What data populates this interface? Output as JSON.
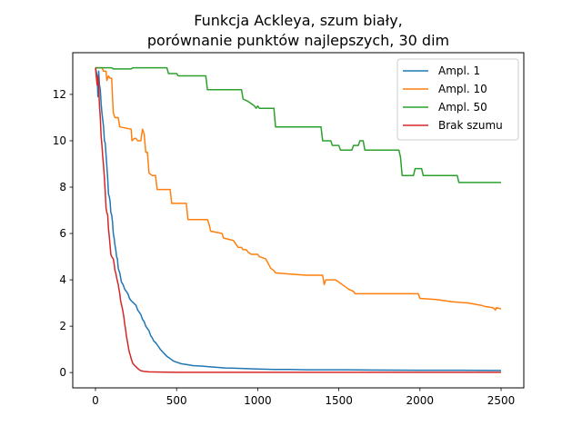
{
  "chart_data": {
    "type": "line",
    "title_line1": "Funkcja Ackleya, szum biały,",
    "title_line2": "porównanie punktów najlepszych, 30 dim",
    "xlabel": "",
    "ylabel": "",
    "xlim": [
      -140,
      2640
    ],
    "ylim": [
      -0.66,
      13.8
    ],
    "xticks": [
      0,
      500,
      1000,
      1500,
      2000,
      2500
    ],
    "yticks": [
      0,
      2,
      4,
      6,
      8,
      10,
      12
    ],
    "grid": false,
    "legend_position": "top-right",
    "series": [
      {
        "name": "Ampl. 1",
        "color": "#1f77b4",
        "points": [
          [
            0,
            13.15
          ],
          [
            10,
            12.8
          ],
          [
            15,
            11.9
          ],
          [
            20,
            13.0
          ],
          [
            25,
            12.4
          ],
          [
            30,
            12.2
          ],
          [
            35,
            11.6
          ],
          [
            40,
            11.2
          ],
          [
            45,
            10.9
          ],
          [
            50,
            10.6
          ],
          [
            55,
            10.0
          ],
          [
            60,
            9.9
          ],
          [
            65,
            9.4
          ],
          [
            70,
            8.9
          ],
          [
            75,
            8.4
          ],
          [
            80,
            7.7
          ],
          [
            85,
            7.6
          ],
          [
            90,
            7.4
          ],
          [
            95,
            6.9
          ],
          [
            100,
            6.8
          ],
          [
            105,
            6.5
          ],
          [
            110,
            6.0
          ],
          [
            115,
            5.8
          ],
          [
            120,
            5.5
          ],
          [
            125,
            5.3
          ],
          [
            130,
            5.0
          ],
          [
            135,
            4.9
          ],
          [
            140,
            4.5
          ],
          [
            145,
            4.4
          ],
          [
            150,
            4.3
          ],
          [
            160,
            3.9
          ],
          [
            170,
            3.8
          ],
          [
            180,
            3.6
          ],
          [
            190,
            3.5
          ],
          [
            200,
            3.4
          ],
          [
            210,
            3.2
          ],
          [
            220,
            3.1
          ],
          [
            235,
            3.0
          ],
          [
            250,
            2.9
          ],
          [
            260,
            2.7
          ],
          [
            270,
            2.6
          ],
          [
            280,
            2.5
          ],
          [
            290,
            2.3
          ],
          [
            300,
            2.2
          ],
          [
            310,
            2.0
          ],
          [
            320,
            1.9
          ],
          [
            330,
            1.8
          ],
          [
            340,
            1.6
          ],
          [
            350,
            1.5
          ],
          [
            360,
            1.35
          ],
          [
            370,
            1.3
          ],
          [
            380,
            1.2
          ],
          [
            400,
            1.0
          ],
          [
            420,
            0.85
          ],
          [
            440,
            0.7
          ],
          [
            460,
            0.6
          ],
          [
            480,
            0.5
          ],
          [
            500,
            0.45
          ],
          [
            530,
            0.38
          ],
          [
            560,
            0.35
          ],
          [
            600,
            0.3
          ],
          [
            650,
            0.28
          ],
          [
            700,
            0.25
          ],
          [
            800,
            0.2
          ],
          [
            900,
            0.18
          ],
          [
            1000,
            0.15
          ],
          [
            1100,
            0.13
          ],
          [
            1200,
            0.13
          ],
          [
            1300,
            0.12
          ],
          [
            1500,
            0.12
          ],
          [
            1700,
            0.11
          ],
          [
            2000,
            0.1
          ],
          [
            2200,
            0.1
          ],
          [
            2500,
            0.09
          ]
        ]
      },
      {
        "name": "Ampl. 10",
        "color": "#ff7f0e",
        "points": [
          [
            0,
            13.15
          ],
          [
            40,
            13.15
          ],
          [
            50,
            13.0
          ],
          [
            65,
            13.0
          ],
          [
            70,
            12.6
          ],
          [
            80,
            12.8
          ],
          [
            90,
            12.7
          ],
          [
            100,
            12.7
          ],
          [
            105,
            11.9
          ],
          [
            110,
            11.2
          ],
          [
            120,
            11.0
          ],
          [
            140,
            11.0
          ],
          [
            150,
            10.6
          ],
          [
            220,
            10.5
          ],
          [
            225,
            10.0
          ],
          [
            240,
            10.1
          ],
          [
            250,
            10.1
          ],
          [
            260,
            10.0
          ],
          [
            280,
            10.0
          ],
          [
            290,
            10.5
          ],
          [
            300,
            10.3
          ],
          [
            310,
            9.5
          ],
          [
            320,
            9.5
          ],
          [
            330,
            8.6
          ],
          [
            350,
            8.5
          ],
          [
            370,
            8.5
          ],
          [
            380,
            7.9
          ],
          [
            460,
            7.9
          ],
          [
            470,
            7.3
          ],
          [
            560,
            7.3
          ],
          [
            570,
            6.6
          ],
          [
            690,
            6.6
          ],
          [
            700,
            6.4
          ],
          [
            710,
            6.1
          ],
          [
            780,
            6.0
          ],
          [
            790,
            5.8
          ],
          [
            850,
            5.7
          ],
          [
            880,
            5.4
          ],
          [
            900,
            5.4
          ],
          [
            910,
            5.3
          ],
          [
            930,
            5.3
          ],
          [
            940,
            5.2
          ],
          [
            960,
            5.1
          ],
          [
            1000,
            5.1
          ],
          [
            1010,
            5.0
          ],
          [
            1050,
            4.9
          ],
          [
            1080,
            4.5
          ],
          [
            1100,
            4.4
          ],
          [
            1110,
            4.3
          ],
          [
            1200,
            4.25
          ],
          [
            1300,
            4.2
          ],
          [
            1400,
            4.2
          ],
          [
            1410,
            3.8
          ],
          [
            1420,
            4.0
          ],
          [
            1480,
            4.0
          ],
          [
            1520,
            3.8
          ],
          [
            1540,
            3.7
          ],
          [
            1560,
            3.6
          ],
          [
            1590,
            3.5
          ],
          [
            1600,
            3.4
          ],
          [
            1700,
            3.4
          ],
          [
            1850,
            3.4
          ],
          [
            1990,
            3.4
          ],
          [
            2000,
            3.2
          ],
          [
            2100,
            3.15
          ],
          [
            2150,
            3.1
          ],
          [
            2200,
            3.05
          ],
          [
            2300,
            3.0
          ],
          [
            2380,
            2.9
          ],
          [
            2400,
            2.85
          ],
          [
            2450,
            2.8
          ],
          [
            2465,
            2.7
          ],
          [
            2470,
            2.8
          ],
          [
            2500,
            2.75
          ]
        ]
      },
      {
        "name": "Ampl. 50",
        "color": "#2ca02c",
        "points": [
          [
            0,
            13.15
          ],
          [
            100,
            13.15
          ],
          [
            110,
            13.1
          ],
          [
            220,
            13.1
          ],
          [
            230,
            13.15
          ],
          [
            440,
            13.15
          ],
          [
            450,
            12.9
          ],
          [
            500,
            12.9
          ],
          [
            510,
            12.8
          ],
          [
            680,
            12.8
          ],
          [
            690,
            12.2
          ],
          [
            900,
            12.2
          ],
          [
            910,
            11.8
          ],
          [
            940,
            11.7
          ],
          [
            960,
            11.6
          ],
          [
            980,
            11.5
          ],
          [
            990,
            11.4
          ],
          [
            1000,
            11.5
          ],
          [
            1010,
            11.4
          ],
          [
            1100,
            11.4
          ],
          [
            1110,
            10.6
          ],
          [
            1390,
            10.6
          ],
          [
            1400,
            10.0
          ],
          [
            1450,
            10.0
          ],
          [
            1460,
            9.8
          ],
          [
            1500,
            9.8
          ],
          [
            1510,
            9.6
          ],
          [
            1580,
            9.6
          ],
          [
            1590,
            9.8
          ],
          [
            1620,
            9.8
          ],
          [
            1630,
            10.0
          ],
          [
            1650,
            10.0
          ],
          [
            1660,
            9.6
          ],
          [
            1870,
            9.6
          ],
          [
            1880,
            9.3
          ],
          [
            1890,
            8.5
          ],
          [
            1960,
            8.5
          ],
          [
            1970,
            8.8
          ],
          [
            2010,
            8.8
          ],
          [
            2020,
            8.5
          ],
          [
            2230,
            8.5
          ],
          [
            2240,
            8.2
          ],
          [
            2500,
            8.2
          ]
        ]
      },
      {
        "name": "Brak szumu",
        "color": "#d62728",
        "points": [
          [
            0,
            13.15
          ],
          [
            10,
            12.4
          ],
          [
            15,
            12.8
          ],
          [
            20,
            12.3
          ],
          [
            25,
            11.5
          ],
          [
            30,
            11.0
          ],
          [
            35,
            10.2
          ],
          [
            40,
            9.8
          ],
          [
            45,
            9.3
          ],
          [
            50,
            8.9
          ],
          [
            55,
            8.4
          ],
          [
            60,
            7.8
          ],
          [
            65,
            7.1
          ],
          [
            70,
            6.9
          ],
          [
            75,
            6.8
          ],
          [
            80,
            6.2
          ],
          [
            85,
            5.9
          ],
          [
            90,
            5.5
          ],
          [
            95,
            5.1
          ],
          [
            100,
            5.0
          ],
          [
            105,
            4.95
          ],
          [
            110,
            4.9
          ],
          [
            115,
            4.7
          ],
          [
            120,
            4.4
          ],
          [
            125,
            4.3
          ],
          [
            130,
            4.1
          ],
          [
            135,
            3.95
          ],
          [
            140,
            3.8
          ],
          [
            145,
            3.6
          ],
          [
            150,
            3.4
          ],
          [
            155,
            3.1
          ],
          [
            160,
            2.95
          ],
          [
            165,
            2.8
          ],
          [
            170,
            2.6
          ],
          [
            175,
            2.4
          ],
          [
            180,
            2.1
          ],
          [
            185,
            1.9
          ],
          [
            190,
            1.6
          ],
          [
            195,
            1.4
          ],
          [
            200,
            1.2
          ],
          [
            205,
            1.0
          ],
          [
            210,
            0.85
          ],
          [
            215,
            0.75
          ],
          [
            220,
            0.6
          ],
          [
            225,
            0.5
          ],
          [
            230,
            0.4
          ],
          [
            240,
            0.32
          ],
          [
            250,
            0.25
          ],
          [
            260,
            0.18
          ],
          [
            270,
            0.12
          ],
          [
            280,
            0.08
          ],
          [
            300,
            0.05
          ],
          [
            330,
            0.03
          ],
          [
            400,
            0.02
          ],
          [
            500,
            0.01
          ],
          [
            700,
            0.01
          ],
          [
            1000,
            0.01
          ],
          [
            1500,
            0.01
          ],
          [
            2000,
            0.01
          ],
          [
            2500,
            0.01
          ]
        ]
      }
    ]
  }
}
